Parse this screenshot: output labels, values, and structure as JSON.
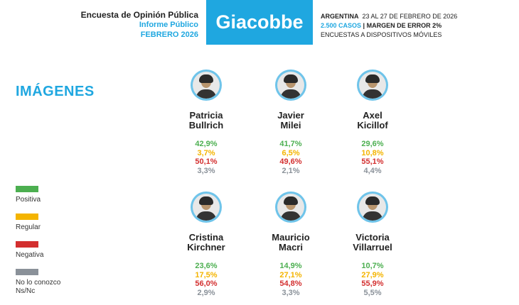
{
  "header": {
    "title": "Encuesta de Opinión Pública",
    "subtitle": "Informe Público",
    "date": "FEBRERO 2026",
    "brand": "Giacobbe",
    "country": "ARGENTINA",
    "period": "23 AL 27 DE FEBRERO DE 2026",
    "cases": "2.500 CASOS",
    "separator": "|",
    "margin": "MARGEN DE ERROR 2%",
    "method": "ENCUESTAS A DISPOSITIVOS MÓVILES"
  },
  "section_title": "IMÁGENES",
  "legend": [
    {
      "label": "Positiva",
      "color": "#4caf50"
    },
    {
      "label": "Regular",
      "color": "#f4b400"
    },
    {
      "label": "Negativa",
      "color": "#d32f2f"
    },
    {
      "label": "No lo conozco\nNs/Nc",
      "color": "#8a9199"
    }
  ],
  "candidates": [
    {
      "first": "Patricia",
      "last": "Bullrich",
      "positiva": "42,9%",
      "regular": "3,7%",
      "negativa": "50,1%",
      "ns": "3,3%"
    },
    {
      "first": "Javier",
      "last": "Milei",
      "positiva": "41,7%",
      "regular": "6,5%",
      "negativa": "49,6%",
      "ns": "2,1%"
    },
    {
      "first": "Axel",
      "last": "Kicillof",
      "positiva": "29,6%",
      "regular": "10,8%",
      "negativa": "55,1%",
      "ns": "4,4%"
    },
    {
      "first": "Cristina",
      "last": "Kirchner",
      "positiva": "23,6%",
      "regular": "17,5%",
      "negativa": "56,0%",
      "ns": "2,9%"
    },
    {
      "first": "Mauricio",
      "last": "Macri",
      "positiva": "14,9%",
      "regular": "27,1%",
      "negativa": "54,8%",
      "ns": "3,3%"
    },
    {
      "first": "Victoria",
      "last": "Villarruel",
      "positiva": "10,7%",
      "regular": "27,9%",
      "negativa": "55,9%",
      "ns": "5,5%"
    }
  ]
}
